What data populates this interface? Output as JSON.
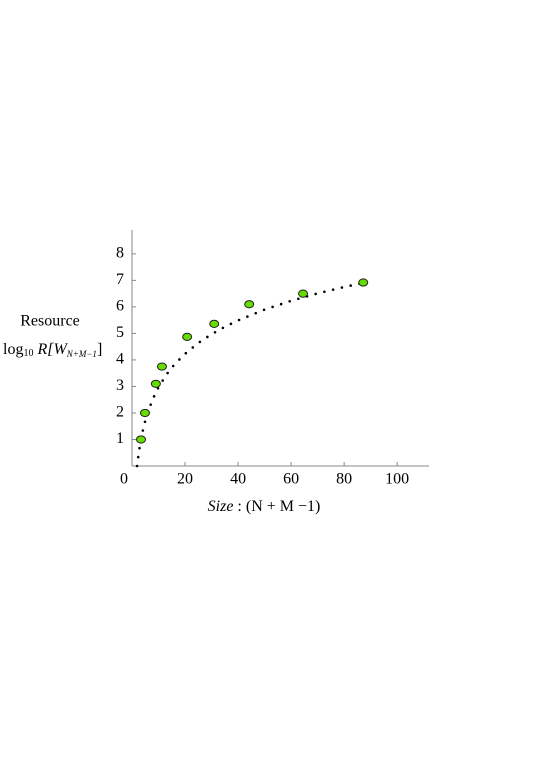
{
  "chart_data": {
    "type": "scatter",
    "y_label": "Resource",
    "y_label_formula": {
      "log": "log",
      "base": "10",
      "body": " R[W",
      "sub": "N+M−1",
      "close": "]"
    },
    "x_label": {
      "italic": "Size",
      "rest": " : (N + M −1)"
    },
    "xlim": [
      0,
      112
    ],
    "ylim": [
      0,
      8.9
    ],
    "xticks": [
      0,
      20,
      40,
      60,
      80,
      100
    ],
    "yticks": [
      1,
      2,
      3,
      4,
      5,
      6,
      7,
      8
    ],
    "series": [
      {
        "color": "#66dd00",
        "x": [
          3.4,
          4.9,
          9,
          11.3,
          20.8,
          31,
          44.2,
          64.5,
          87.2
        ],
        "values": [
          1,
          2,
          3.1,
          3.75,
          4.87,
          5.36,
          6.1,
          6.5,
          6.92
        ]
      },
      {
        "color": "#000000",
        "x": [
          1.9,
          2.5,
          3,
          4,
          5,
          6,
          8,
          10,
          13,
          16,
          20,
          25,
          30,
          35,
          40,
          50,
          60,
          70,
          80,
          87
        ],
        "values": [
          0.0,
          0.45,
          0.78,
          1.3,
          1.71,
          2.04,
          2.56,
          2.97,
          3.45,
          3.83,
          4.23,
          4.64,
          4.97,
          5.25,
          5.49,
          5.9,
          6.23,
          6.51,
          6.75,
          6.9
        ]
      }
    ]
  }
}
